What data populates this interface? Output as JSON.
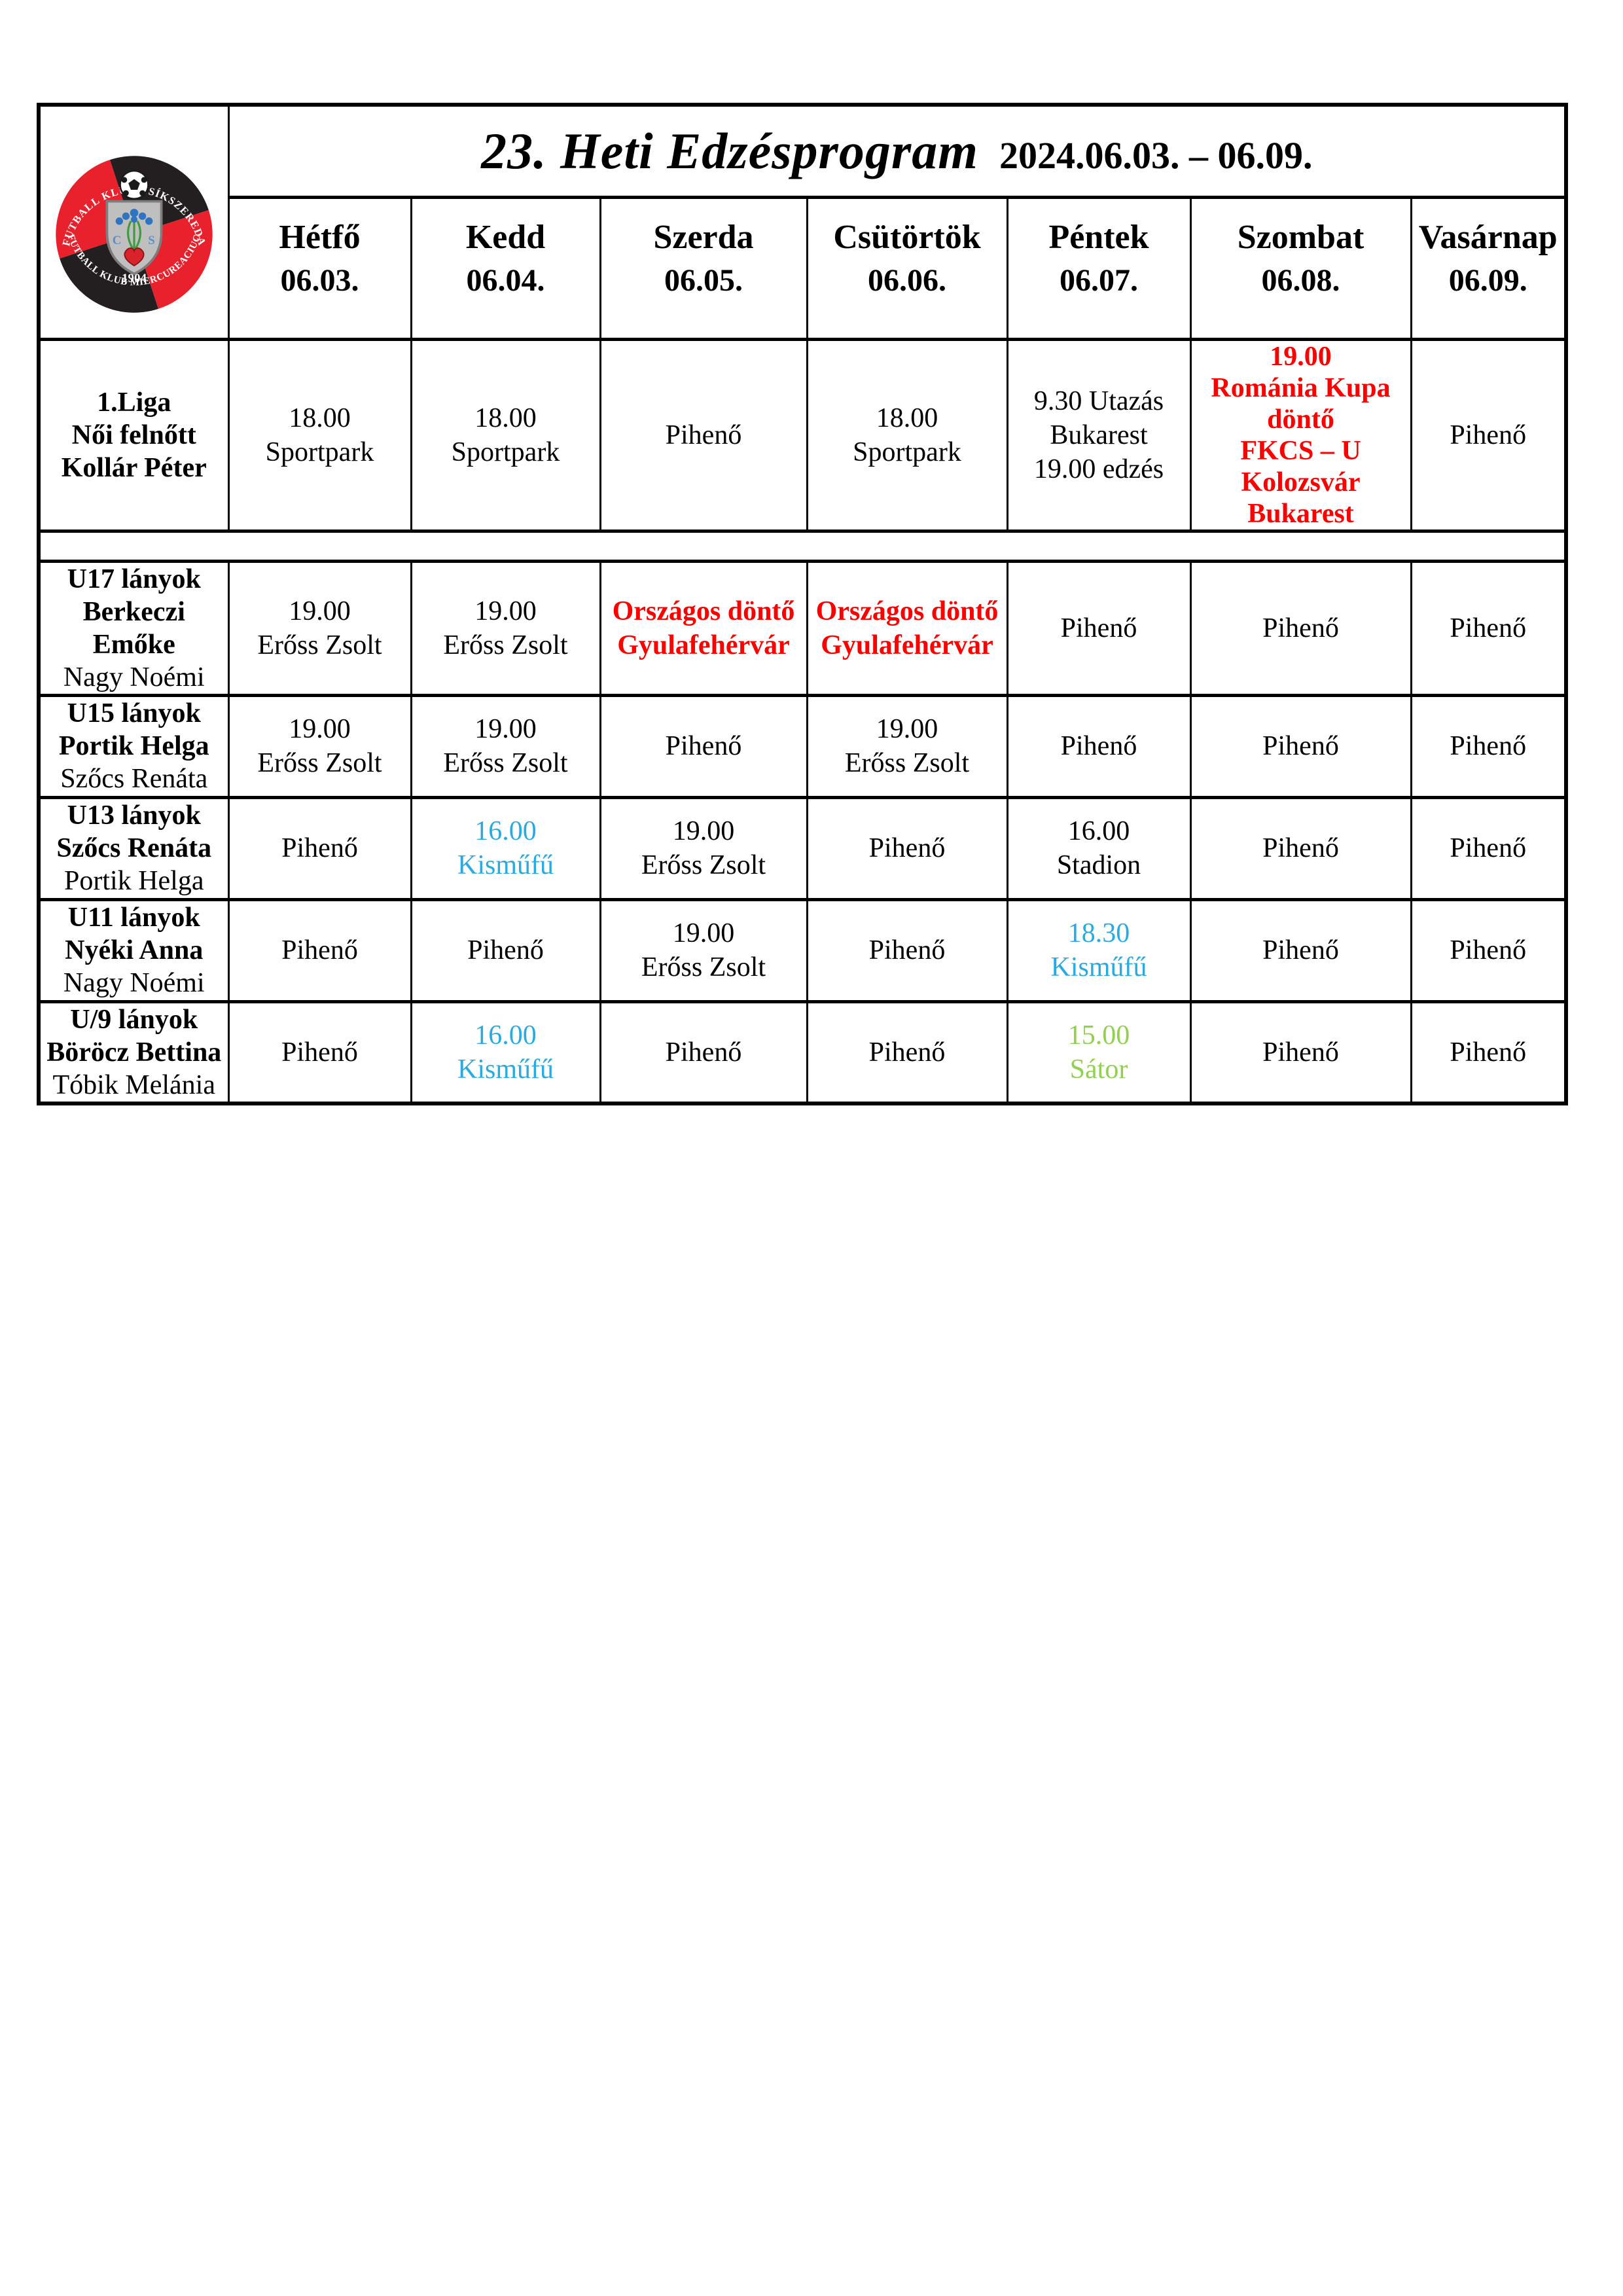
{
  "header": {
    "title": "23. Heti Edzésprogram",
    "date_range": "2024.06.03. – 06.09."
  },
  "logo": {
    "arc_top": "FUTBALL KLUB CSÍKSZEREDA",
    "arc_bottom": "FUTBALL KLUB MIERCUREACIUC",
    "year": "1904",
    "monogram_left": "C",
    "monogram_right": "S",
    "red": "#e8212d",
    "black": "#231f20"
  },
  "days": [
    {
      "name": "Hétfő",
      "date": "06.03."
    },
    {
      "name": "Kedd",
      "date": "06.04."
    },
    {
      "name": "Szerda",
      "date": "06.05."
    },
    {
      "name": "Csütörtök",
      "date": "06.06."
    },
    {
      "name": "Péntek",
      "date": "06.07."
    },
    {
      "name": "Szombat",
      "date": "06.08."
    },
    {
      "name": "Vasárnap",
      "date": "06.09."
    }
  ],
  "colors": {
    "red": "#ff0000",
    "blue": "#29abe2",
    "green": "#92d050"
  },
  "rows": [
    {
      "id": "liga1",
      "separator_after": true,
      "group": [
        {
          "text": "1.Liga",
          "bold": true
        },
        {
          "text": "Női felnőtt",
          "bold": true
        },
        {
          "text": "Kollár Péter",
          "bold": true
        }
      ],
      "cells": [
        {
          "lines": [
            "18.00",
            "Sportpark"
          ]
        },
        {
          "lines": [
            "18.00",
            "Sportpark"
          ]
        },
        {
          "lines": [
            "Pihenő"
          ]
        },
        {
          "lines": [
            "18.00",
            "Sportpark"
          ]
        },
        {
          "lines": [
            "9.30 Utazás",
            "Bukarest",
            "19.00 edzés"
          ]
        },
        {
          "lines": [
            "19.00",
            "Románia Kupa",
            "döntő",
            "FKCS – U",
            "Kolozsvár",
            "Bukarest"
          ],
          "color": "red",
          "bold": true
        },
        {
          "lines": [
            "Pihenő"
          ]
        }
      ]
    },
    {
      "id": "u17",
      "group": [
        {
          "text": "U17 lányok",
          "bold": true
        },
        {
          "text": "Berkeczi Emőke",
          "bold": true
        },
        {
          "text": "Nagy Noémi",
          "bold": false
        }
      ],
      "cells": [
        {
          "lines": [
            "19.00",
            "Erőss Zsolt"
          ]
        },
        {
          "lines": [
            "19.00",
            "Erőss Zsolt"
          ]
        },
        {
          "lines": [
            "Országos döntő",
            "Gyulafehérvár"
          ],
          "color": "red",
          "bold": true
        },
        {
          "lines": [
            "Országos döntő",
            "Gyulafehérvár"
          ],
          "color": "red",
          "bold": true
        },
        {
          "lines": [
            "Pihenő"
          ]
        },
        {
          "lines": [
            "Pihenő"
          ]
        },
        {
          "lines": [
            "Pihenő"
          ]
        }
      ]
    },
    {
      "id": "u15",
      "group": [
        {
          "text": "U15 lányok",
          "bold": true
        },
        {
          "text": "Portik Helga",
          "bold": true
        },
        {
          "text": "Szőcs Renáta",
          "bold": false
        }
      ],
      "cells": [
        {
          "lines": [
            "19.00",
            "Erőss Zsolt"
          ]
        },
        {
          "lines": [
            "19.00",
            "Erőss Zsolt"
          ]
        },
        {
          "lines": [
            "Pihenő"
          ]
        },
        {
          "lines": [
            "19.00",
            "Erőss Zsolt"
          ]
        },
        {
          "lines": [
            "Pihenő"
          ]
        },
        {
          "lines": [
            "Pihenő"
          ]
        },
        {
          "lines": [
            "Pihenő"
          ]
        }
      ]
    },
    {
      "id": "u13",
      "group": [
        {
          "text": "U13 lányok",
          "bold": true
        },
        {
          "text": "Szőcs Renáta",
          "bold": true
        },
        {
          "text": "Portik Helga",
          "bold": false
        }
      ],
      "cells": [
        {
          "lines": [
            "Pihenő"
          ]
        },
        {
          "lines": [
            "16.00",
            "Kisműfű"
          ],
          "color": "blue"
        },
        {
          "lines": [
            "19.00",
            "Erőss Zsolt"
          ]
        },
        {
          "lines": [
            "Pihenő"
          ]
        },
        {
          "lines": [
            "16.00",
            "Stadion"
          ]
        },
        {
          "lines": [
            "Pihenő"
          ]
        },
        {
          "lines": [
            "Pihenő"
          ]
        }
      ]
    },
    {
      "id": "u11",
      "group": [
        {
          "text": "U11 lányok",
          "bold": true
        },
        {
          "text": "Nyéki Anna",
          "bold": true
        },
        {
          "text": "Nagy Noémi",
          "bold": false
        }
      ],
      "cells": [
        {
          "lines": [
            "Pihenő"
          ]
        },
        {
          "lines": [
            "Pihenő"
          ]
        },
        {
          "lines": [
            "19.00",
            "Erőss Zsolt"
          ]
        },
        {
          "lines": [
            "Pihenő"
          ]
        },
        {
          "lines": [
            "18.30",
            "Kisműfű"
          ],
          "color": "blue"
        },
        {
          "lines": [
            "Pihenő"
          ]
        },
        {
          "lines": [
            "Pihenő"
          ]
        }
      ]
    },
    {
      "id": "u9",
      "group": [
        {
          "text": "U/9 lányok",
          "bold": true
        },
        {
          "text": "Böröcz Bettina",
          "bold": true
        },
        {
          "text": "Tóbik Melánia",
          "bold": false
        }
      ],
      "cells": [
        {
          "lines": [
            "Pihenő"
          ]
        },
        {
          "lines": [
            "16.00",
            "Kisműfű"
          ],
          "color": "blue"
        },
        {
          "lines": [
            "Pihenő"
          ]
        },
        {
          "lines": [
            "Pihenő"
          ]
        },
        {
          "lines": [
            "15.00",
            "Sátor"
          ],
          "color": "green"
        },
        {
          "lines": [
            "Pihenő"
          ]
        },
        {
          "lines": [
            "Pihenő"
          ]
        }
      ]
    }
  ]
}
